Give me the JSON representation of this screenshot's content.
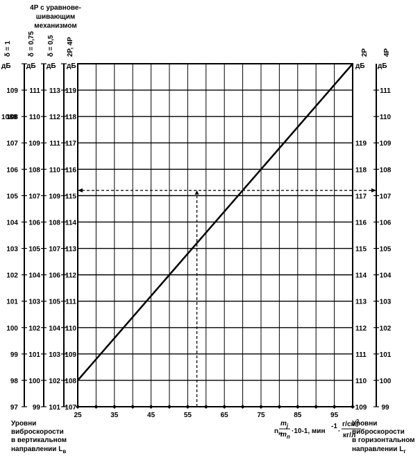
{
  "chart_data": {
    "type": "line",
    "title_lines": [
      "4Р с уравнове-",
      "шивающим",
      "механизмом"
    ],
    "left_scales": [
      {
        "name": "δ = 1",
        "unit": "дБ",
        "ticks": [
          "109",
          "108",
          "107",
          "106",
          "105",
          "104",
          "103",
          "102",
          "101",
          "100",
          "99",
          "98",
          "97"
        ]
      },
      {
        "name": "δ = 0,75",
        "unit": "дБ",
        "ticks": [
          "111",
          "110",
          "109",
          "108",
          "107",
          "106",
          "105",
          "104",
          "103",
          "102",
          "101",
          "100",
          "99"
        ]
      },
      {
        "name": "δ = 0,5",
        "unit": "дБ",
        "ticks": [
          "113",
          "112",
          "111",
          "110",
          "109",
          "108",
          "107",
          "106",
          "105",
          "104",
          "103",
          "102",
          "101"
        ]
      },
      {
        "name": "2Р, 4Р",
        "unit": "дБ",
        "ticks": [
          "119",
          "118",
          "117",
          "116",
          "115",
          "114",
          "113",
          "112",
          "111",
          "110",
          "109",
          "108",
          "107"
        ]
      }
    ],
    "right_scales": [
      {
        "name": "2Р",
        "unit": "дБ",
        "ticks": [
          "",
          "",
          "",
          "",
          "",
          "",
          "",
          "",
          "",
          "",
          "",
          "",
          ""
        ]
      },
      {
        "name": "4Р",
        "unit": "дБ",
        "ticks": [
          "111",
          "110",
          "109",
          "108",
          "107",
          "106",
          "105",
          "104",
          "103",
          "102",
          "101",
          "100",
          "99"
        ]
      }
    ],
    "inner_right_ticks": [
      "",
      "",
      "119",
      "118",
      "117",
      "116",
      "115",
      "114",
      "113",
      "112",
      "111",
      "110",
      "109"
    ],
    "x_ticks": [
      "25",
      "35",
      "45",
      "55",
      "65",
      "75",
      "85",
      "95"
    ],
    "x_tick_values": [
      25,
      35,
      45,
      55,
      65,
      75,
      85,
      95
    ],
    "xlim": [
      25,
      100
    ],
    "y_left_2P4P_lim": [
      107,
      120
    ],
    "x_label_parts": {
      "n": "n",
      "n_sub": "н",
      "frac_num": "m",
      "frac_num_sub": "j",
      "frac_den": "m",
      "frac_den_sub": "п",
      "rest": "·10-1, мин",
      "sup": "-1",
      "dot": "·",
      "unit_num": "г/см",
      "unit_num_sup": "2",
      "unit_den": "кг/л"
    },
    "left_caption": [
      "Уровни",
      "виброскорости",
      "в вертикальном",
      "направлении L"
    ],
    "left_caption_sub": "в",
    "right_caption": [
      "Уровни",
      "виброскорости",
      "в горизонтальном",
      "направлении L"
    ],
    "right_caption_sub": "г",
    "weird_label": "1088",
    "series": [
      {
        "x": [
          25,
          100
        ],
        "y": [
          108,
          120
        ]
      }
    ],
    "example": {
      "x": 57.5,
      "y": 115.2
    }
  }
}
